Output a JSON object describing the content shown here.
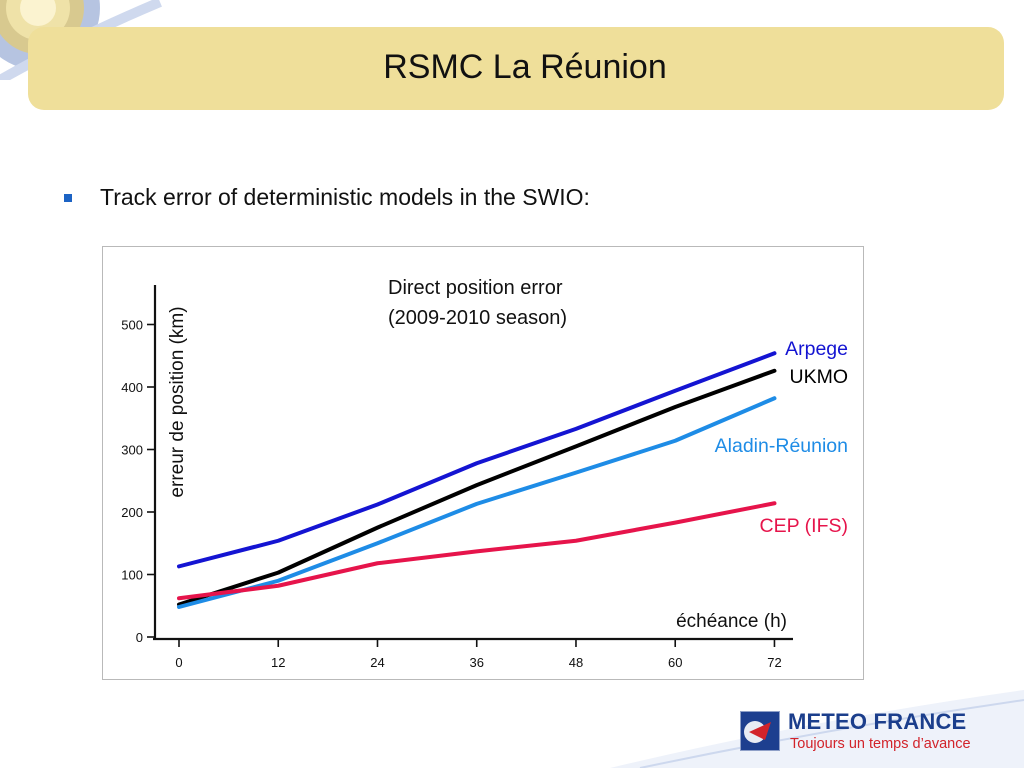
{
  "slide": {
    "title": "RSMC La Réunion",
    "bullet": "Track error of deterministic models in the SWIO:"
  },
  "logo": {
    "name": "METEO FRANCE",
    "tagline": "Toujours un temps d’avance"
  },
  "colors": {
    "title_band": "#efdf9a",
    "bullet": "#1c63c4",
    "arpege": "#1414d2",
    "ukmo": "#000000",
    "aladin": "#1e8ce6",
    "cep": "#e6144b",
    "logo_blue": "#1b3e8c",
    "logo_red": "#d2232a"
  },
  "chart_data": {
    "type": "line",
    "title": "Direct position error\n(2009-2010 season)",
    "xlabel": "échéance (h)",
    "ylabel": "erreur de position (km)",
    "x": [
      0,
      12,
      24,
      36,
      48,
      60,
      72
    ],
    "xticks": [
      "0",
      "12",
      "24",
      "36",
      "48",
      "60",
      "72"
    ],
    "yticks": [
      "0",
      "100",
      "200",
      "300",
      "400",
      "500"
    ],
    "ylim": [
      0,
      560
    ],
    "xlim": [
      0,
      74
    ],
    "legend": "inline labels at line ends",
    "grid": false,
    "series": [
      {
        "name": "Arpege",
        "color": "#1414d2",
        "values": [
          113,
          154,
          212,
          278,
          333,
          394,
          454
        ]
      },
      {
        "name": "UKMO",
        "color": "#000000",
        "values": [
          52,
          103,
          175,
          243,
          305,
          368,
          426
        ]
      },
      {
        "name": "Aladin-Réunion",
        "color": "#1e8ce6",
        "values": [
          48,
          90,
          150,
          213,
          263,
          314,
          382
        ]
      },
      {
        "name": "CEP (IFS)",
        "color": "#e6144b",
        "values": [
          62,
          82,
          118,
          137,
          154,
          183,
          214
        ]
      }
    ]
  }
}
